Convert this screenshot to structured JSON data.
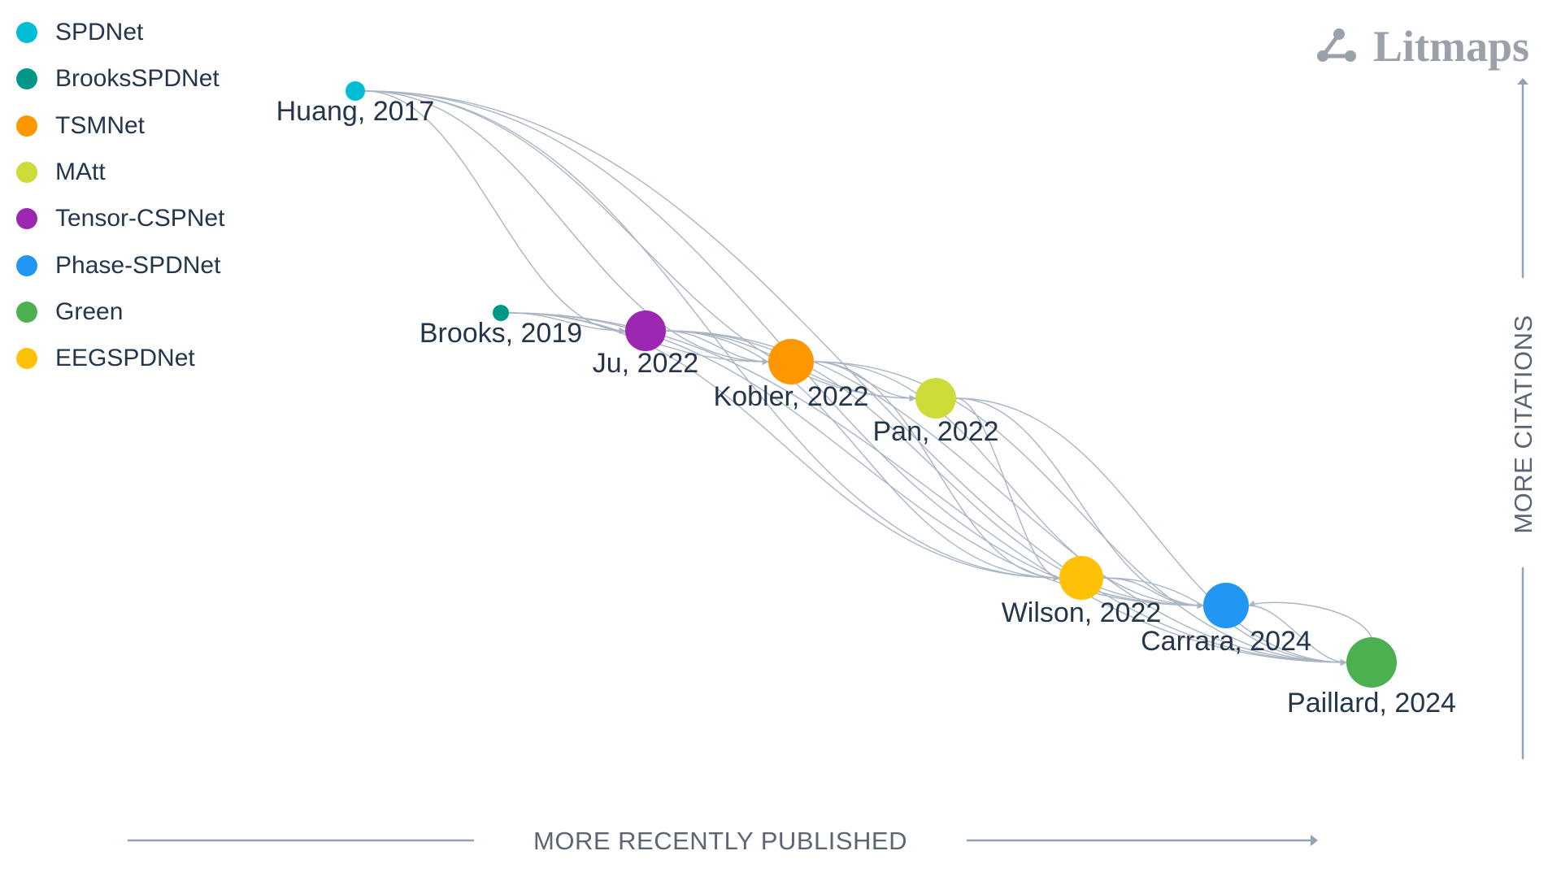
{
  "brand": {
    "name": "Litmaps",
    "icon": "graph-nodes-icon"
  },
  "legend": [
    {
      "label": "SPDNet",
      "color": "#00bcd4"
    },
    {
      "label": "BrooksSPDNet",
      "color": "#009688"
    },
    {
      "label": "TSMNet",
      "color": "#ff9800"
    },
    {
      "label": "MAtt",
      "color": "#cddc39"
    },
    {
      "label": "Tensor-CSPNet",
      "color": "#9c27b0"
    },
    {
      "label": "Phase-SPDNet",
      "color": "#2196f3"
    },
    {
      "label": "Green",
      "color": "#4caf50"
    },
    {
      "label": "EEGSPDNet",
      "color": "#ffc107"
    }
  ],
  "axes": {
    "x_label": "MORE RECENTLY PUBLISHED",
    "y_label": "MORE CITATIONS"
  },
  "chart_data": {
    "type": "citation-network",
    "x_axis": "publication date (more recent to the right)",
    "y_axis": "citations (more to the top)",
    "nodes": [
      {
        "id": "huang",
        "label": "Huang, 2017",
        "author": "Huang",
        "year": 2017,
        "group": "SPDNet",
        "color": "#00bcd4",
        "size": "small"
      },
      {
        "id": "brooks",
        "label": "Brooks, 2019",
        "author": "Brooks",
        "year": 2019,
        "group": "BrooksSPDNet",
        "color": "#009688",
        "size": "small"
      },
      {
        "id": "ju",
        "label": "Ju, 2022",
        "author": "Ju",
        "year": 2022,
        "group": "Tensor-CSPNet",
        "color": "#9c27b0",
        "size": "large"
      },
      {
        "id": "kobler",
        "label": "Kobler, 2022",
        "author": "Kobler",
        "year": 2022,
        "group": "TSMNet",
        "color": "#ff9800",
        "size": "large"
      },
      {
        "id": "pan",
        "label": "Pan, 2022",
        "author": "Pan",
        "year": 2022,
        "group": "MAtt",
        "color": "#cddc39",
        "size": "large"
      },
      {
        "id": "wilson",
        "label": "Wilson, 2022",
        "author": "Wilson",
        "year": 2022,
        "group": "EEGSPDNet",
        "color": "#ffc107",
        "size": "large"
      },
      {
        "id": "carrara",
        "label": "Carrara, 2024",
        "author": "Carrara",
        "year": 2024,
        "group": "Phase-SPDNet",
        "color": "#2196f3",
        "size": "large"
      },
      {
        "id": "paillard",
        "label": "Paillard, 2024",
        "author": "Paillard",
        "year": 2024,
        "group": "Green",
        "color": "#4caf50",
        "size": "large"
      }
    ],
    "edges": [
      [
        "huang",
        "ju"
      ],
      [
        "huang",
        "kobler"
      ],
      [
        "huang",
        "pan"
      ],
      [
        "huang",
        "wilson"
      ],
      [
        "huang",
        "carrara"
      ],
      [
        "huang",
        "paillard"
      ],
      [
        "brooks",
        "ju"
      ],
      [
        "brooks",
        "kobler"
      ],
      [
        "brooks",
        "wilson"
      ],
      [
        "brooks",
        "carrara"
      ],
      [
        "brooks",
        "paillard"
      ],
      [
        "ju",
        "kobler"
      ],
      [
        "ju",
        "pan"
      ],
      [
        "ju",
        "wilson"
      ],
      [
        "ju",
        "carrara"
      ],
      [
        "ju",
        "paillard"
      ],
      [
        "kobler",
        "pan"
      ],
      [
        "kobler",
        "wilson"
      ],
      [
        "kobler",
        "carrara"
      ],
      [
        "kobler",
        "paillard"
      ],
      [
        "pan",
        "wilson"
      ],
      [
        "pan",
        "carrara"
      ],
      [
        "pan",
        "paillard"
      ],
      [
        "wilson",
        "carrara"
      ],
      [
        "wilson",
        "paillard"
      ],
      [
        "carrara",
        "paillard"
      ],
      [
        "paillard",
        "carrara"
      ]
    ]
  }
}
